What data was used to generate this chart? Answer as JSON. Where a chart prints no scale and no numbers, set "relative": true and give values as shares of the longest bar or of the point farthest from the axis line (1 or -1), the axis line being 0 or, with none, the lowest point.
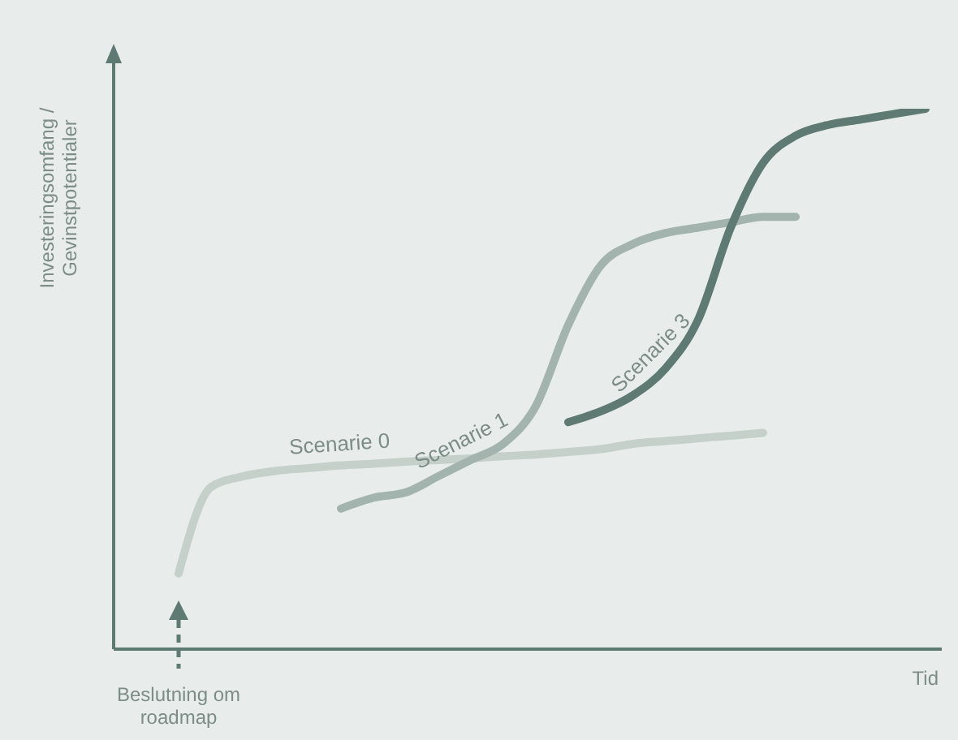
{
  "chart_data": {
    "type": "line",
    "relative": true,
    "xlabel": "Tid",
    "ylabel": "Investeringsomfang / Gevinstpotentialer",
    "categories": [
      null,
      null,
      null,
      null,
      null,
      null,
      null,
      null,
      null,
      null,
      null,
      null,
      null,
      null,
      null,
      null,
      null,
      null,
      null,
      null,
      null,
      null,
      null,
      null,
      null,
      null
    ],
    "series": [
      {
        "name": "Scenarie 0",
        "color": "#c5d0cb",
        "values": [
          null,
          null,
          0.14,
          0.3,
          0.32,
          0.33,
          0.335,
          0.34,
          0.343,
          0.347,
          0.35,
          0.353,
          0.357,
          0.36,
          0.365,
          0.37,
          0.38,
          0.385,
          0.39,
          0.395,
          0.4,
          null,
          null,
          null,
          null,
          null
        ]
      },
      {
        "name": "Scenarie 1",
        "color": "#a3b3ad",
        "values": [
          null,
          null,
          null,
          null,
          null,
          null,
          null,
          0.26,
          0.28,
          0.29,
          0.32,
          0.35,
          0.38,
          0.45,
          0.6,
          0.71,
          0.75,
          0.77,
          0.78,
          0.79,
          0.8,
          0.8,
          null,
          null,
          null,
          null
        ]
      },
      {
        "name": "Scenarie 3",
        "color": "#5e7a72",
        "values": [
          null,
          null,
          null,
          null,
          null,
          null,
          null,
          null,
          null,
          null,
          null,
          null,
          null,
          null,
          0.42,
          0.44,
          0.47,
          0.52,
          0.61,
          0.78,
          0.9,
          0.95,
          0.97,
          0.98,
          0.99,
          1.0
        ]
      }
    ],
    "annotations": [
      "Beslutning om roadmap"
    ],
    "grid": false,
    "legend": false,
    "marker": "none",
    "line_style": "solid"
  }
}
